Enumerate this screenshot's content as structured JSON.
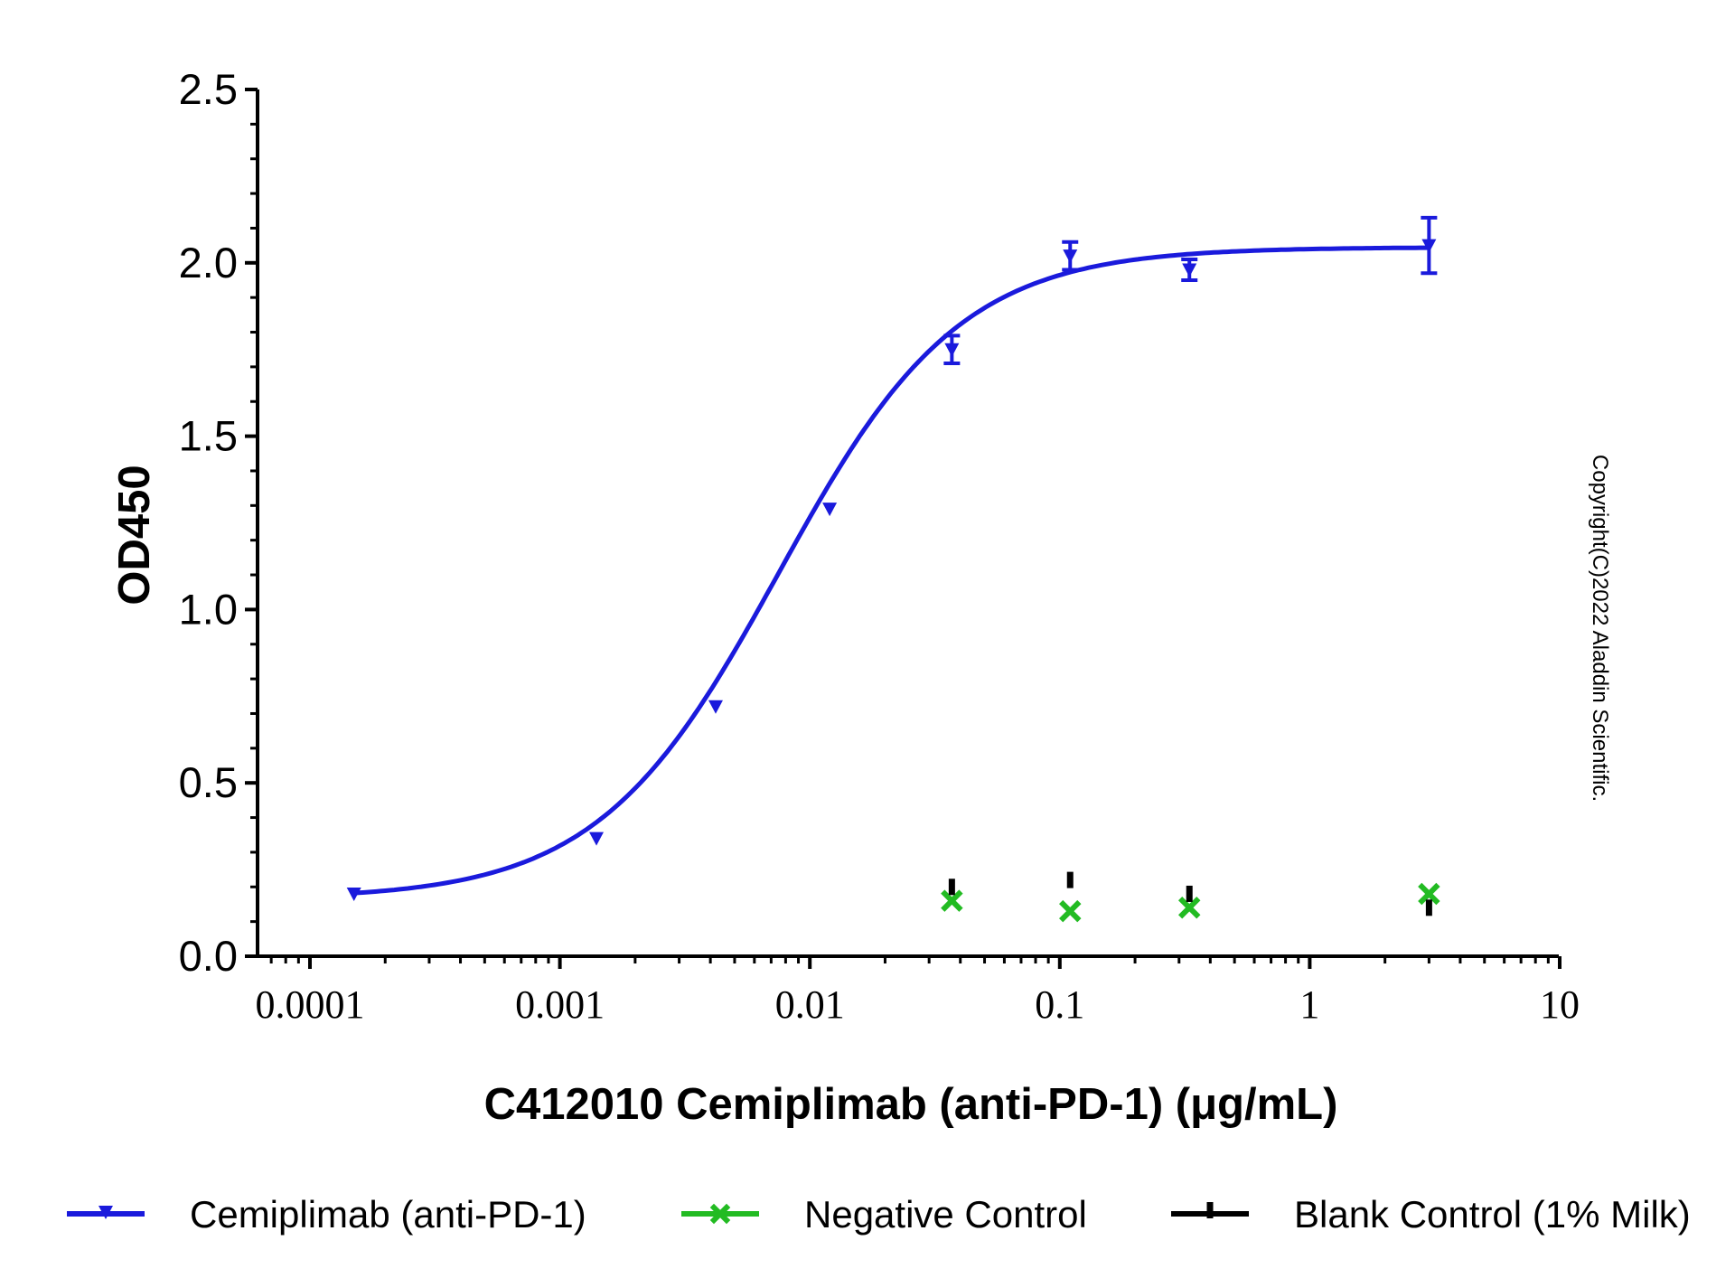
{
  "chart_data": {
    "type": "scatter",
    "title": "",
    "xlabel": "C412010 Cemiplimab (anti-PD-1) (μg/mL)",
    "ylabel": "OD450",
    "xscale": "log",
    "xlim": [
      0.0001,
      10
    ],
    "ylim": [
      0,
      2.5
    ],
    "xticks": [
      "0.0001",
      "0.001",
      "0.01",
      "0.1",
      "1",
      "10"
    ],
    "yticks": [
      "0.0",
      "0.5",
      "1.0",
      "1.5",
      "2.0",
      "2.5"
    ],
    "grid": false,
    "legend_position": "bottom",
    "series": [
      {
        "name": "Cemiplimab (anti-PD-1)",
        "color": "#1a1adc",
        "marker": "triangle-down",
        "fit": "four-parameter logistic curve",
        "points": [
          {
            "x": 0.00015,
            "y": 0.18,
            "err": 0
          },
          {
            "x": 0.0014,
            "y": 0.34,
            "err": 0
          },
          {
            "x": 0.0042,
            "y": 0.72,
            "err": 0
          },
          {
            "x": 0.012,
            "y": 1.29,
            "err": 0
          },
          {
            "x": 0.037,
            "y": 1.75,
            "err": 0.04
          },
          {
            "x": 0.11,
            "y": 2.02,
            "err": 0.04
          },
          {
            "x": 0.33,
            "y": 1.98,
            "err": 0.03
          },
          {
            "x": 3.0,
            "y": 2.05,
            "err": 0.08
          }
        ]
      },
      {
        "name": "Negative Control",
        "color": "#22bb22",
        "marker": "x",
        "points": [
          {
            "x": 0.037,
            "y": 0.16
          },
          {
            "x": 0.11,
            "y": 0.13
          },
          {
            "x": 0.33,
            "y": 0.14
          },
          {
            "x": 3.0,
            "y": 0.18
          }
        ]
      },
      {
        "name": "Blank Control (1% Milk)",
        "color": "#000000",
        "marker": "bar",
        "points": [
          {
            "x": 0.037,
            "y": 0.2
          },
          {
            "x": 0.11,
            "y": 0.22
          },
          {
            "x": 0.33,
            "y": 0.18
          },
          {
            "x": 3.0,
            "y": 0.14
          }
        ]
      }
    ],
    "annotations": [
      "Copyright(C)2022 Aladdin Scientific."
    ]
  }
}
